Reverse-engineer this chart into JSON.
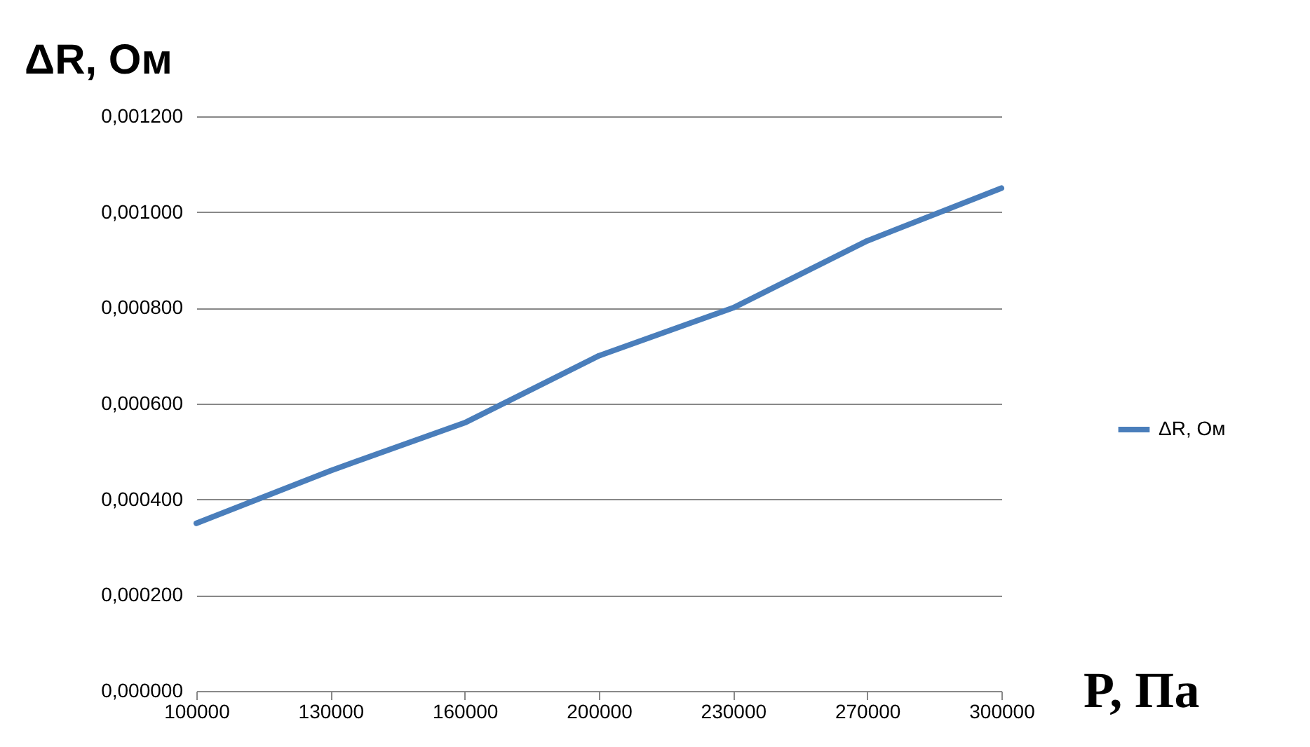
{
  "chart_data": {
    "type": "line",
    "xlabel": "P, Па",
    "ylabel": "ΔR, Ом",
    "categories": [
      "100000",
      "130000",
      "160000",
      "200000",
      "230000",
      "270000",
      "300000"
    ],
    "series": [
      {
        "name": "ΔR, Ом",
        "color": "#4a7ebb",
        "values": [
          0.00035,
          0.00046,
          0.00056,
          0.0007,
          0.0008,
          0.00094,
          0.00105
        ]
      }
    ],
    "ylim": [
      0,
      0.0012
    ],
    "yticks": [
      {
        "value": 0,
        "label": "0,000000"
      },
      {
        "value": 0.0002,
        "label": "0,000200"
      },
      {
        "value": 0.0004,
        "label": "0,000400"
      },
      {
        "value": 0.0006,
        "label": "0,000600"
      },
      {
        "value": 0.0008,
        "label": "0,000800"
      },
      {
        "value": 0.001,
        "label": "0,001000"
      },
      {
        "value": 0.0012,
        "label": "0,001200"
      }
    ],
    "grid": "y",
    "legend": "right",
    "marker": "none",
    "line_style": "solid"
  }
}
